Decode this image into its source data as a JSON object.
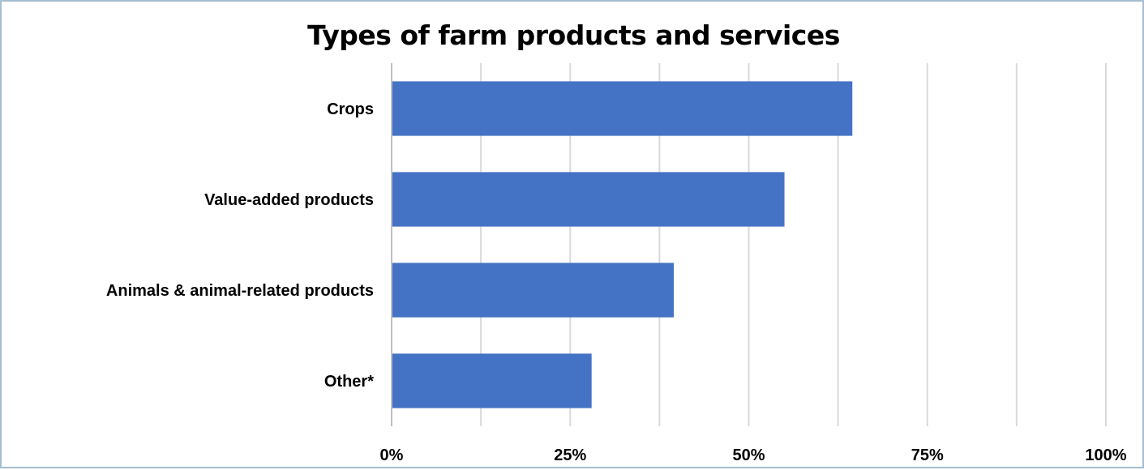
{
  "chart_data": {
    "type": "bar",
    "orientation": "horizontal",
    "title": "Types of farm products and services",
    "categories": [
      "Crops",
      "Value-added products",
      "Animals & animal-related products",
      "Other*"
    ],
    "values": [
      64.5,
      55,
      39.5,
      28
    ],
    "xlim": [
      0,
      100
    ],
    "x_ticks": [
      0,
      25,
      50,
      75,
      100
    ],
    "x_tick_labels": [
      "0%",
      "25%",
      "50%",
      "75%",
      "100%"
    ],
    "grid": true,
    "legend": "none",
    "colors": {
      "bar": "#4472c4",
      "grid": "#d9d9d9",
      "axis": "#bfbfbf",
      "border": "#a6bdd0"
    }
  }
}
